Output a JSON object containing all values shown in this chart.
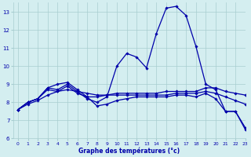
{
  "xlabel": "Graphe des températures (°c)",
  "bg_color": "#d4eef0",
  "grid_color": "#a8cdd0",
  "line_color": "#0000aa",
  "line1_y": [
    7.6,
    8.0,
    8.2,
    8.8,
    8.7,
    9.0,
    8.6,
    8.2,
    8.0,
    8.3,
    10.0,
    10.7,
    10.5,
    9.9,
    11.8,
    13.2,
    13.3,
    12.8,
    11.1,
    9.0,
    8.7,
    7.5,
    7.5,
    6.6
  ],
  "line2_y": [
    7.6,
    8.0,
    8.2,
    8.7,
    8.6,
    8.9,
    8.5,
    8.3,
    8.3,
    8.4,
    8.5,
    8.5,
    8.5,
    8.5,
    8.5,
    8.6,
    8.6,
    8.6,
    8.6,
    8.8,
    8.8,
    8.6,
    8.5,
    8.4
  ],
  "line3_y": [
    7.6,
    7.9,
    8.1,
    8.4,
    8.6,
    8.7,
    8.6,
    8.5,
    8.4,
    8.4,
    8.4,
    8.4,
    8.4,
    8.4,
    8.4,
    8.4,
    8.5,
    8.5,
    8.5,
    8.6,
    8.5,
    8.3,
    8.1,
    7.9
  ],
  "line4_y": [
    7.6,
    8.0,
    8.2,
    8.8,
    9.0,
    9.1,
    8.7,
    8.3,
    7.8,
    7.9,
    8.1,
    8.2,
    8.3,
    8.3,
    8.3,
    8.3,
    8.4,
    8.4,
    8.3,
    8.5,
    8.2,
    7.5,
    7.5,
    6.5
  ],
  "x": [
    0,
    1,
    2,
    3,
    4,
    5,
    6,
    7,
    8,
    9,
    10,
    11,
    12,
    13,
    14,
    15,
    16,
    17,
    18,
    19,
    20,
    21,
    22,
    23
  ],
  "ylim": [
    6,
    13.5
  ],
  "xlim": [
    -0.5,
    23
  ],
  "yticks": [
    6,
    7,
    8,
    9,
    10,
    11,
    12,
    13
  ],
  "xticks": [
    0,
    1,
    2,
    3,
    4,
    5,
    6,
    7,
    8,
    9,
    10,
    11,
    12,
    13,
    14,
    15,
    16,
    17,
    18,
    19,
    20,
    21,
    22,
    23
  ]
}
